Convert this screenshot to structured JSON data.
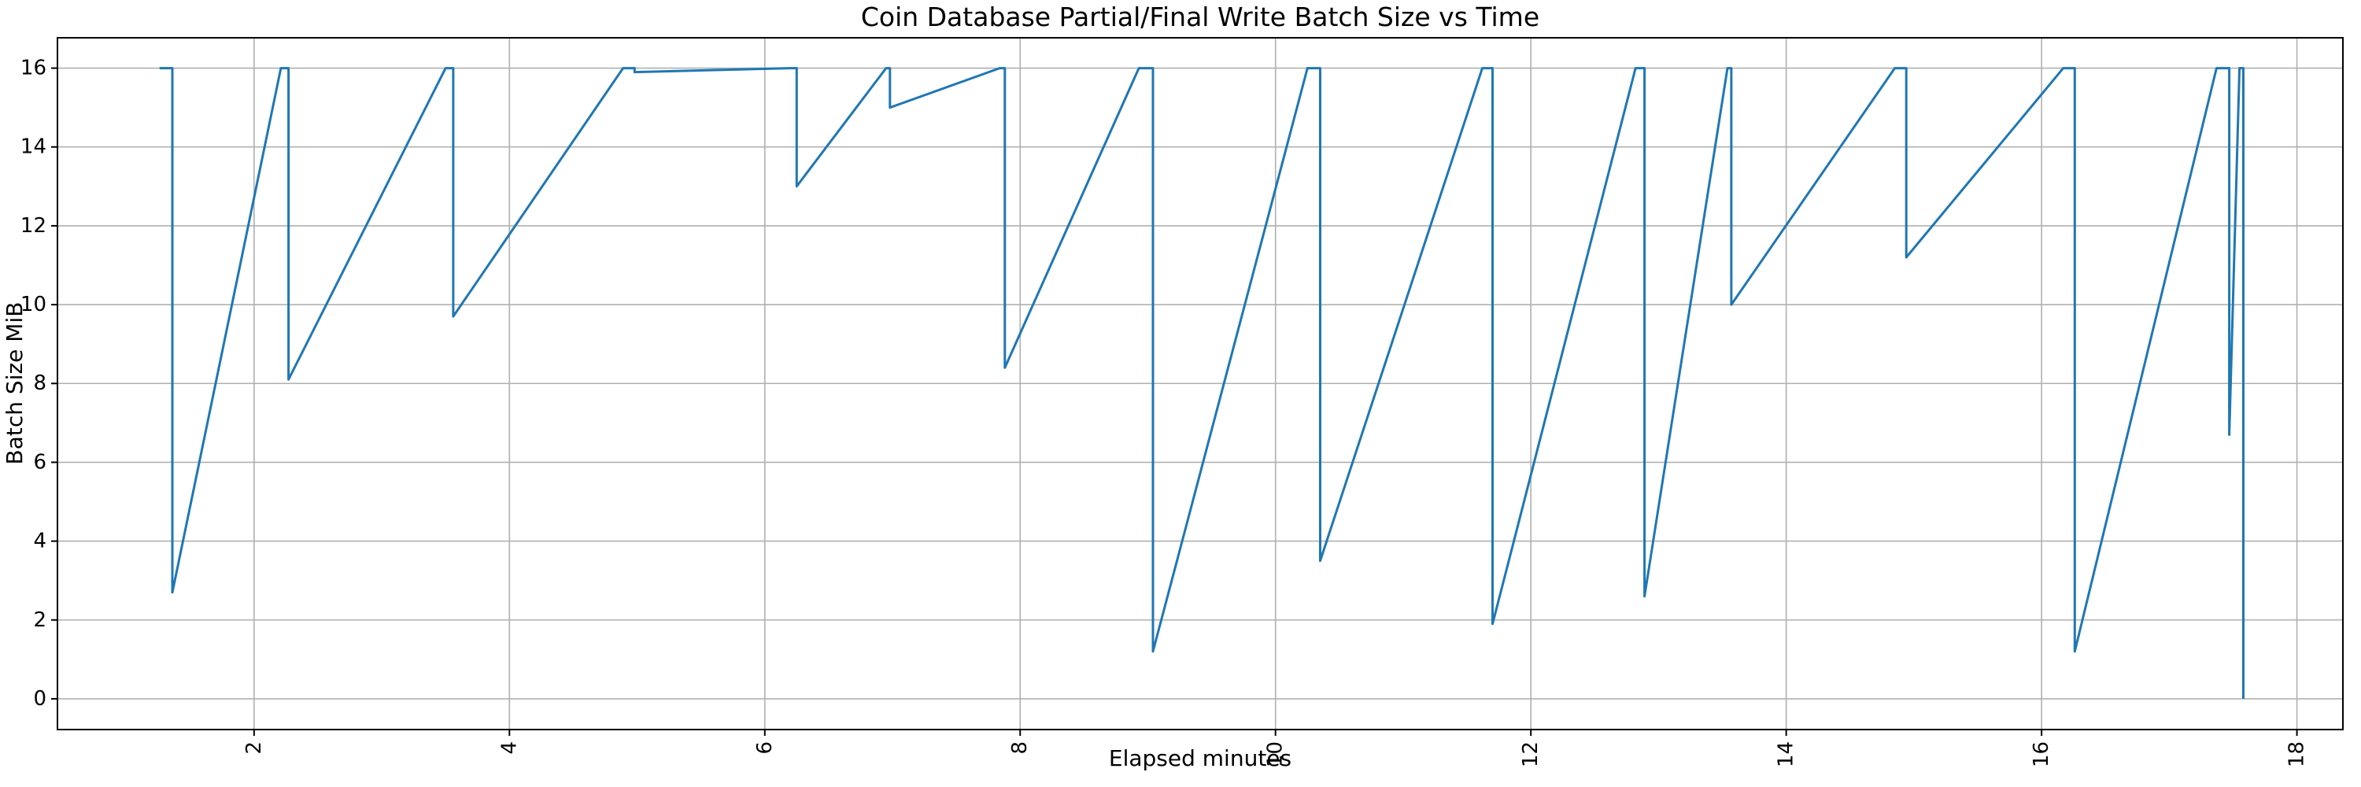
{
  "page": {
    "background": "#ffffff"
  },
  "chart_data": {
    "type": "line",
    "title": "Coin Database Partial/Final Write Batch Size vs Time",
    "xlabel": "Elapsed minutes",
    "ylabel": "Batch Size MiB",
    "x_ticks": [
      2,
      4,
      6,
      8,
      10,
      12,
      14,
      16,
      18
    ],
    "y_ticks": [
      0,
      2,
      4,
      6,
      8,
      10,
      12,
      14,
      16
    ],
    "xlim": [
      0.46,
      18.36
    ],
    "ylim": [
      -0.78,
      16.77
    ],
    "grid": true,
    "legend_position": "none",
    "line_color": "#1f77b4",
    "grid_color": "#b0b0b0",
    "axis_color": "#000000",
    "series": [
      {
        "name": "batch_size_mib",
        "points": [
          [
            1.26,
            16
          ],
          [
            1.36,
            16
          ],
          [
            1.36,
            2.7
          ],
          [
            2.21,
            16
          ],
          [
            2.27,
            16
          ],
          [
            2.27,
            8.1
          ],
          [
            3.5,
            16
          ],
          [
            3.56,
            16
          ],
          [
            3.56,
            9.7
          ],
          [
            4.89,
            16
          ],
          [
            4.98,
            16
          ],
          [
            4.98,
            15.9
          ],
          [
            6.2,
            16
          ],
          [
            6.25,
            16
          ],
          [
            6.25,
            13.0
          ],
          [
            6.95,
            16
          ],
          [
            6.98,
            16
          ],
          [
            6.98,
            15.0
          ],
          [
            7.84,
            16
          ],
          [
            7.88,
            16
          ],
          [
            7.88,
            8.4
          ],
          [
            8.93,
            16
          ],
          [
            9.04,
            16
          ],
          [
            9.04,
            1.2
          ],
          [
            10.25,
            16
          ],
          [
            10.35,
            16
          ],
          [
            10.35,
            3.5
          ],
          [
            11.62,
            16
          ],
          [
            11.7,
            16
          ],
          [
            11.7,
            1.9
          ],
          [
            12.82,
            16
          ],
          [
            12.89,
            16
          ],
          [
            12.89,
            2.6
          ],
          [
            13.54,
            16
          ],
          [
            13.57,
            16
          ],
          [
            13.57,
            10.0
          ],
          [
            14.85,
            16
          ],
          [
            14.94,
            16
          ],
          [
            14.94,
            11.2
          ],
          [
            16.17,
            16
          ],
          [
            16.26,
            16
          ],
          [
            16.26,
            1.2
          ],
          [
            17.37,
            16
          ],
          [
            17.47,
            16
          ],
          [
            17.47,
            6.7
          ],
          [
            17.55,
            16
          ],
          [
            17.58,
            16
          ],
          [
            17.58,
            0.0
          ]
        ]
      }
    ]
  }
}
